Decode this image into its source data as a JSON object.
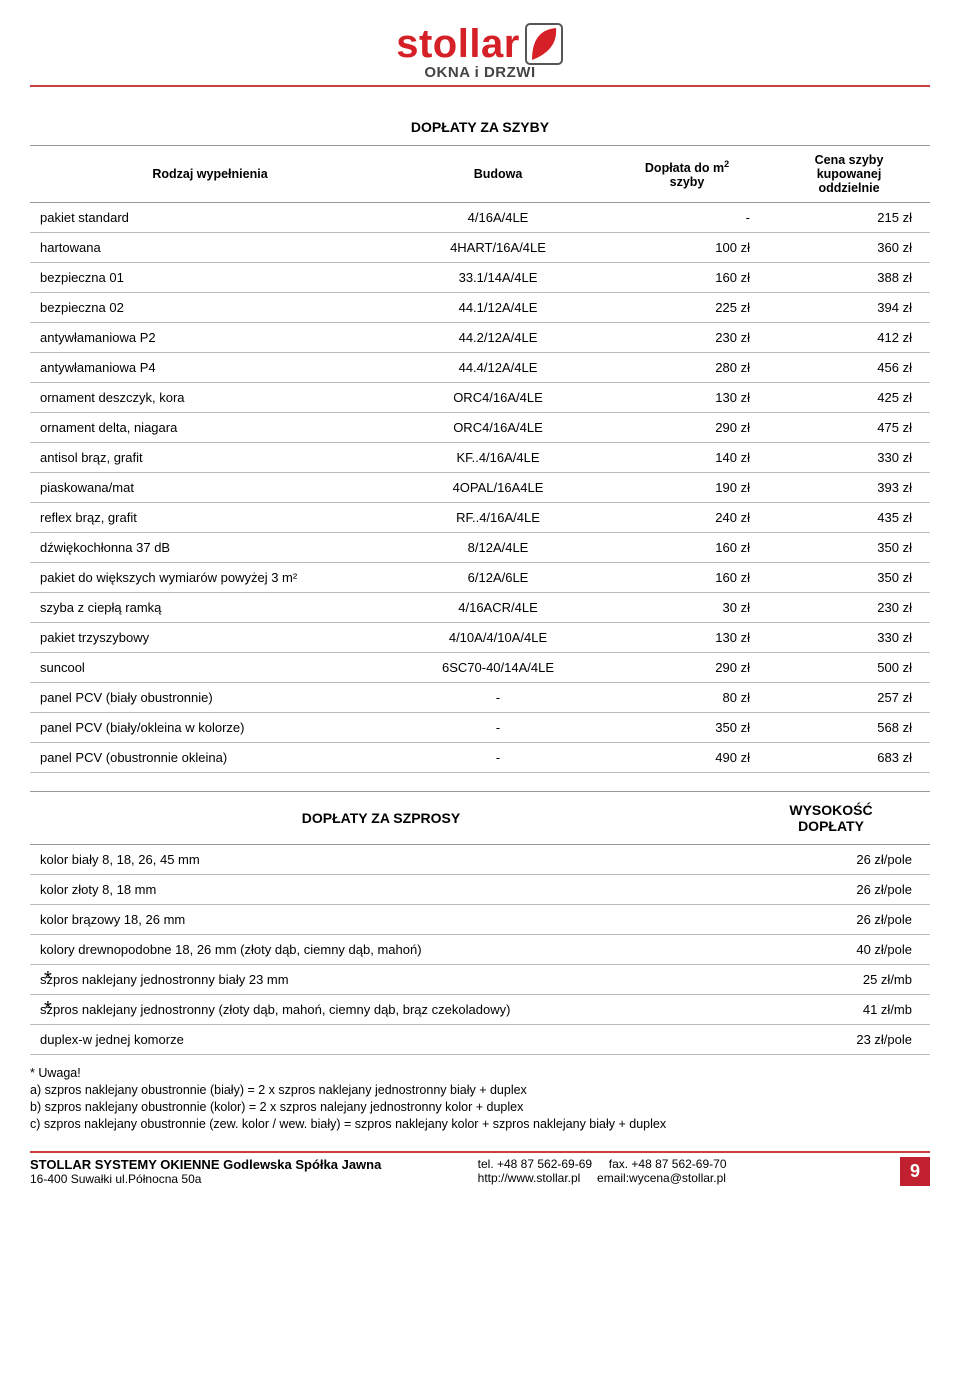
{
  "brand": {
    "name": "stollar",
    "subtitle": "OKNA i DRZWI",
    "brand_color": "#d52027",
    "rule_color": "#c94040"
  },
  "table1": {
    "title": "DOPŁATY ZA SZYBY",
    "headers": {
      "c1": "Rodzaj wypełnienia",
      "c2": "Budowa",
      "c3_l1": "Dopłata do m",
      "c3_sup": "2",
      "c3_l2": "szyby",
      "c4_l1": "Cena szyby",
      "c4_l2": "kupowanej",
      "c4_l3": "oddzielnie"
    },
    "rows": [
      {
        "c1": "pakiet standard",
        "c2": "4/16A/4LE",
        "c3": "-",
        "c4": "215 zł"
      },
      {
        "c1": "hartowana",
        "c2": "4HART/16A/4LE",
        "c3": "100 zł",
        "c4": "360 zł"
      },
      {
        "c1": "bezpieczna 01",
        "c2": "33.1/14A/4LE",
        "c3": "160 zł",
        "c4": "388 zł"
      },
      {
        "c1": "bezpieczna 02",
        "c2": "44.1/12A/4LE",
        "c3": "225 zł",
        "c4": "394 zł"
      },
      {
        "c1": "antywłamaniowa P2",
        "c2": "44.2/12A/4LE",
        "c3": "230 zł",
        "c4": "412 zł"
      },
      {
        "c1": "antywłamaniowa P4",
        "c2": "44.4/12A/4LE",
        "c3": "280 zł",
        "c4": "456 zł"
      },
      {
        "c1": "ornament deszczyk, kora",
        "c2": "ORC4/16A/4LE",
        "c3": "130 zł",
        "c4": "425 zł"
      },
      {
        "c1": "ornament delta, niagara",
        "c2": "ORC4/16A/4LE",
        "c3": "290 zł",
        "c4": "475 zł"
      },
      {
        "c1": "antisol brąz, grafit",
        "c2": "KF..4/16A/4LE",
        "c3": "140 zł",
        "c4": "330 zł"
      },
      {
        "c1": "piaskowana/mat",
        "c2": "4OPAL/16A4LE",
        "c3": "190 zł",
        "c4": "393 zł"
      },
      {
        "c1": "reflex brąz, grafit",
        "c2": "RF..4/16A/4LE",
        "c3": "240 zł",
        "c4": "435 zł"
      },
      {
        "c1": "dźwiękochłonna 37 dB",
        "c2": "8/12A/4LE",
        "c3": "160 zł",
        "c4": "350 zł"
      },
      {
        "c1": "pakiet do większych wymiarów powyżej 3 m²",
        "c2": "6/12A/6LE",
        "c3": "160 zł",
        "c4": "350 zł"
      },
      {
        "c1": "szyba z ciepłą ramką",
        "c2": "4/16ACR/4LE",
        "c3": "30 zł",
        "c4": "230 zł"
      },
      {
        "c1": "pakiet trzyszybowy",
        "c2": "4/10A/4/10A/4LE",
        "c3": "130 zł",
        "c4": "330 zł"
      },
      {
        "c1": "suncool",
        "c2": "6SC70-40/14A/4LE",
        "c3": "290 zł",
        "c4": "500 zł"
      },
      {
        "c1": "panel PCV (biały obustronnie)",
        "c2": "-",
        "c3": "80 zł",
        "c4": "257 zł"
      },
      {
        "c1": "panel PCV (biały/okleina w kolorze)",
        "c2": "-",
        "c3": "350 zł",
        "c4": "568 zł"
      },
      {
        "c1": "panel PCV (obustronnie okleina)",
        "c2": "-",
        "c3": "490 zł",
        "c4": "683 zł"
      }
    ]
  },
  "table2": {
    "title": "DOPŁATY ZA SZPROSY",
    "header_right_l1": "WYSOKOŚĆ",
    "header_right_l2": "DOPŁATY",
    "rows": [
      {
        "star": false,
        "c1": "kolor biały 8, 18, 26, 45 mm",
        "c2": "26 zł/pole"
      },
      {
        "star": false,
        "c1": "kolor złoty 8, 18 mm",
        "c2": "26 zł/pole"
      },
      {
        "star": false,
        "c1": "kolor brązowy 18, 26 mm",
        "c2": "26 zł/pole"
      },
      {
        "star": false,
        "c1": "kolory drewnopodobne 18, 26 mm (złoty dąb, ciemny dąb, mahoń)",
        "c2": "40 zł/pole"
      },
      {
        "star": true,
        "c1": "szpros naklejany jednostronny biały 23 mm",
        "c2": "25 zł/mb"
      },
      {
        "star": true,
        "c1": "szpros naklejany jednostronny  (złoty dąb, mahoń, ciemny dąb, brąz czekoladowy)",
        "c2": "41 zł/mb"
      },
      {
        "star": false,
        "c1": "duplex-w jednej komorze",
        "c2": "23 zł/pole"
      }
    ]
  },
  "note": {
    "label": "* Uwaga!",
    "lines": [
      "a) szpros naklejany obustronnie (biały) = 2 x szpros naklejany jednostronny biały + duplex",
      "b) szpros naklejany obustronnie (kolor) = 2 x szpros nalejany jednostronny kolor + duplex",
      "c) szpros naklejany obustronnie (zew. kolor / wew. biały) = szpros naklejany kolor + szpros naklejany biały + duplex"
    ]
  },
  "footer": {
    "company": "STOLLAR SYSTEMY OKIENNE Godlewska Spółka Jawna",
    "address": "16-400 Suwałki ul.Północna 50a",
    "tel": "tel. +48 87 562-69-69",
    "fax": "fax. +48 87 562-69-70",
    "url": "http://www.stollar.pl",
    "email": "email:wycena@stollar.pl",
    "page": "9"
  }
}
